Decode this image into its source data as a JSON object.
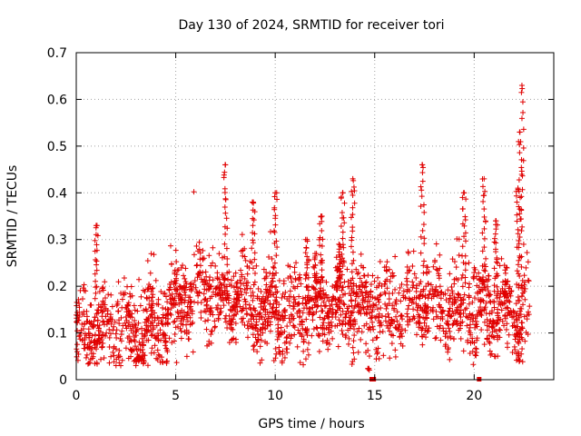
{
  "chart_data": {
    "type": "scatter",
    "title": "Day 130 of 2024, SRMTID for receiver tori",
    "xlabel": "GPS time / hours",
    "ylabel": "SRMTID / TECUs",
    "xlim": [
      0,
      24
    ],
    "ylim": [
      0,
      0.7
    ],
    "x_ticks": [
      0,
      5,
      10,
      15,
      20
    ],
    "x_tick_labels": [
      "0",
      "5",
      "10",
      "15",
      "20"
    ],
    "y_ticks": [
      0,
      0.1,
      0.2,
      0.3,
      0.4,
      0.5,
      0.6,
      0.7
    ],
    "y_tick_labels": [
      "0",
      "0.1",
      "0.2",
      "0.3",
      "0.4",
      "0.5",
      "0.6",
      "0.7"
    ],
    "grid": true,
    "marker": "+",
    "color": "#e00000",
    "baseline_by_hour": [
      [
        0,
        0.1
      ],
      [
        1,
        0.11
      ],
      [
        2,
        0.11
      ],
      [
        3,
        0.1
      ],
      [
        4,
        0.12
      ],
      [
        5,
        0.15
      ],
      [
        6,
        0.19
      ],
      [
        7,
        0.18
      ],
      [
        8,
        0.17
      ],
      [
        9,
        0.15
      ],
      [
        10,
        0.15
      ],
      [
        11,
        0.14
      ],
      [
        12,
        0.15
      ],
      [
        13,
        0.16
      ],
      [
        14,
        0.16
      ],
      [
        15,
        0.15
      ],
      [
        16,
        0.15
      ],
      [
        17,
        0.16
      ],
      [
        18,
        0.16
      ],
      [
        19,
        0.15
      ],
      [
        20,
        0.16
      ],
      [
        21,
        0.16
      ],
      [
        22,
        0.14
      ],
      [
        23,
        0.14
      ]
    ],
    "spread": 0.045,
    "n_background_points": 2200,
    "spikes": [
      {
        "t": 1.0,
        "peak": 0.33
      },
      {
        "t": 7.5,
        "peak": 0.46
      },
      {
        "t": 8.9,
        "peak": 0.38
      },
      {
        "t": 10.0,
        "peak": 0.4
      },
      {
        "t": 11.6,
        "peak": 0.3
      },
      {
        "t": 12.0,
        "peak": 0.27
      },
      {
        "t": 12.3,
        "peak": 0.35
      },
      {
        "t": 13.2,
        "peak": 0.29
      },
      {
        "t": 13.4,
        "peak": 0.4
      },
      {
        "t": 13.9,
        "peak": 0.43
      },
      {
        "t": 17.4,
        "peak": 0.46
      },
      {
        "t": 19.5,
        "peak": 0.4
      },
      {
        "t": 20.5,
        "peak": 0.43
      },
      {
        "t": 21.1,
        "peak": 0.34
      },
      {
        "t": 22.2,
        "peak": 0.41
      },
      {
        "t": 22.4,
        "peak": 0.63
      },
      {
        "t": 22.3,
        "peak": 0.53
      }
    ],
    "zero_points": [
      14.85,
      14.95,
      20.25
    ],
    "low_dips": [
      {
        "t": 14.7,
        "value": 0.02
      },
      {
        "t": 20.1,
        "value": 0.05
      },
      {
        "t": 22.25,
        "value": 0.05
      }
    ]
  }
}
